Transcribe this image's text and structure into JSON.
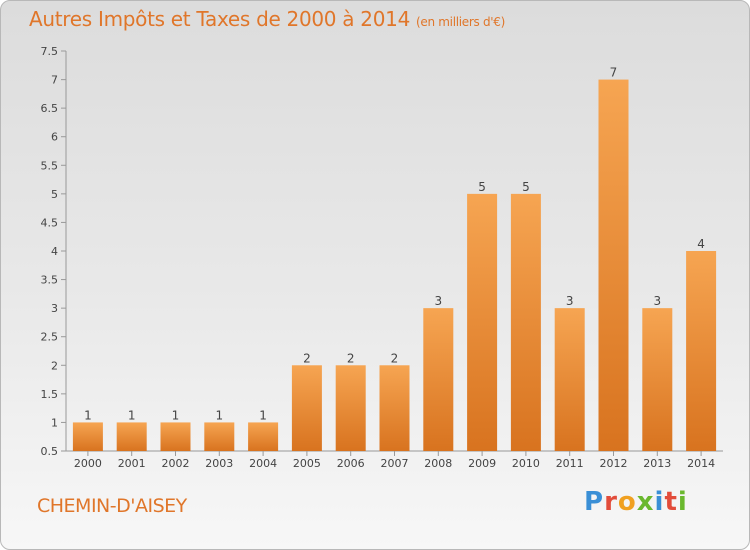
{
  "chart_data": {
    "type": "bar",
    "title": "Autres Impôts et Taxes de 2000 à 2014",
    "subtitle": "(en milliers d'€)",
    "categories": [
      "2000",
      "2001",
      "2002",
      "2003",
      "2004",
      "2005",
      "2006",
      "2007",
      "2008",
      "2009",
      "2010",
      "2011",
      "2012",
      "2013",
      "2014"
    ],
    "values": [
      1,
      1,
      1,
      1,
      1,
      2,
      2,
      2,
      3,
      5,
      5,
      3,
      7,
      3,
      4
    ],
    "ylim": [
      0.5,
      7.5
    ],
    "yticks": [
      "0.5",
      "1",
      "1.5",
      "2",
      "2.5",
      "3",
      "3.5",
      "4",
      "4.5",
      "5",
      "5.5",
      "6",
      "6.5",
      "7",
      "7.5"
    ],
    "grid": false,
    "bar_color": "#f29a45"
  },
  "footer": {
    "commune": "CHEMIN-D'AISEY",
    "logo": "Proxiti"
  }
}
